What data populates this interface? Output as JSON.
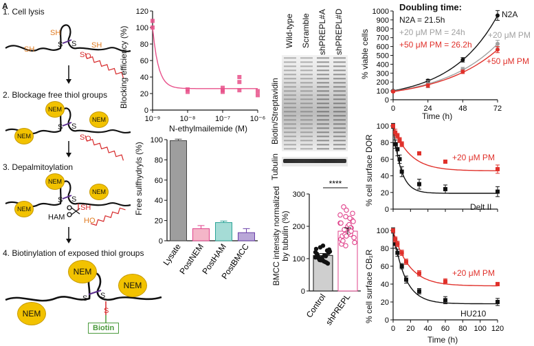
{
  "panel_letters": [
    "A"
  ],
  "schematic": {
    "steps": [
      "1. Cell lysis",
      "2. Blockage free thiol groups",
      "3. Depalmitoylation",
      "4. Biotinylation of exposed thiol groups"
    ],
    "labels": {
      "sh": "SH",
      "s": "S",
      "o": "O",
      "ho": "HO",
      "nem": "NEM",
      "ham": "HAM",
      "biotin": "Biotin"
    },
    "colors": {
      "nem_fill": "#f2c200",
      "nem_stroke": "#c79a00",
      "sh_orange": "#e07a1f",
      "palm_red": "#d62728",
      "biotin_green": "#4a9a3c",
      "disulfide_purple": "#5b2c8e"
    }
  },
  "western": {
    "lane_labels": [
      "Wild-type",
      "Scramble",
      "shPREPL#A",
      "shPREPL#D"
    ],
    "row_labels": [
      "Biotin/Streptavidin",
      "Tubulin"
    ]
  },
  "chart_data": [
    {
      "id": "blocking",
      "type": "scatter",
      "xlabel": "N-ethylmailemide (M)",
      "ylabel": "Blocking efficiency (%)",
      "xscale": "log",
      "xlim": [
        1e-09,
        1e-06
      ],
      "ylim": [
        0,
        120
      ],
      "xticks": [
        "10⁻⁹",
        "10⁻⁸",
        "10⁻⁷",
        "10⁻⁶"
      ],
      "yticks": [
        0,
        20,
        40,
        60,
        80,
        100,
        120
      ],
      "color": "#e8508a",
      "points": [
        [
          1e-09,
          108
        ],
        [
          1e-09,
          100
        ],
        [
          1e-08,
          25
        ],
        [
          1e-08,
          22
        ],
        [
          1e-07,
          27
        ],
        [
          1e-07,
          24
        ],
        [
          1e-07,
          22
        ],
        [
          3e-07,
          40
        ],
        [
          3e-07,
          34
        ],
        [
          3e-07,
          24
        ],
        [
          1e-06,
          23
        ],
        [
          1e-06,
          18
        ]
      ],
      "fit": {
        "plateau": 26,
        "top": 100,
        "x0": 1e-09,
        "rate_per_decade": 6
      }
    },
    {
      "id": "sulfhydryls",
      "type": "bar",
      "ylabel": "Free sulfhydryls (%)",
      "ylim": [
        0,
        100
      ],
      "yticks": [
        0,
        20,
        40,
        60,
        80,
        100
      ],
      "categories": [
        "Lysate",
        "PostNEM",
        "PostHAM",
        "PostBMCC"
      ],
      "values": [
        99,
        12,
        18,
        8
      ],
      "errors": [
        1.5,
        3,
        1.5,
        4
      ],
      "colors": [
        "#9e9e9e",
        "#f4b6c8",
        "#a5dcd6",
        "#b9a7d8"
      ],
      "edge_colors": [
        "#444444",
        "#e0408a",
        "#2aa396",
        "#6a3fa8"
      ]
    },
    {
      "id": "bmcc",
      "type": "bar",
      "ylabel": "BMCC intensity normalized by tubulin (%)",
      "ylim": [
        0,
        300
      ],
      "yticks": [
        0,
        100,
        200,
        300
      ],
      "categories": [
        "Control",
        "shPREPL"
      ],
      "values": [
        110,
        185
      ],
      "errors": [
        6,
        10
      ],
      "significance": "****",
      "colors": [
        "#cfcfcf",
        "#ffffff"
      ],
      "edge_colors": [
        "#111111",
        "#e0408a"
      ],
      "scatter": [
        [
          120,
          108,
          95,
          130,
          88,
          102,
          115,
          125,
          98,
          112,
          85,
          140,
          105,
          118,
          92,
          100,
          128,
          110,
          96,
          122,
          90,
          135,
          104,
          108
        ],
        [
          210,
          175,
          230,
          160,
          195,
          250,
          145,
          220,
          185,
          170,
          240,
          200,
          155,
          215,
          180,
          260,
          165,
          205,
          190,
          150,
          225,
          175,
          235,
          195,
          140,
          210,
          185,
          170
        ]
      ]
    },
    {
      "id": "viability",
      "type": "line",
      "title": "Doubling time:",
      "xlabel": "Time (h)",
      "ylabel": "% viable cells",
      "xlim": [
        0,
        72
      ],
      "ylim": [
        0,
        1000
      ],
      "xticks": [
        0,
        24,
        48,
        72
      ],
      "yticks": [
        0,
        100,
        200,
        300,
        400,
        500,
        600,
        700,
        800,
        900,
        1000
      ],
      "series": [
        {
          "name": "N2A",
          "legend": "N2A = 21.5h",
          "color": "#111111",
          "x": [
            0,
            24,
            48,
            72
          ],
          "y": [
            100,
            215,
            450,
            950
          ],
          "err": [
            10,
            15,
            25,
            55
          ]
        },
        {
          "name": "+20 μM PM",
          "legend": "+20 μM PM = 24h",
          "color": "#a0a0a0",
          "x": [
            0,
            24,
            48,
            72
          ],
          "y": [
            95,
            175,
            345,
            630
          ],
          "err": [
            10,
            40,
            20,
            40
          ]
        },
        {
          "name": "+50 μM PM",
          "legend": "+50 μM PM = 26.2h",
          "color": "#e0302a",
          "x": [
            0,
            24,
            48,
            72
          ],
          "y": [
            92,
            160,
            315,
            565
          ],
          "err": [
            10,
            20,
            20,
            35
          ]
        }
      ]
    },
    {
      "id": "dor",
      "type": "line",
      "ylabel": "% cell surface DOR",
      "xlim": [
        0,
        120
      ],
      "ylim": [
        0,
        100
      ],
      "yticks": [
        0,
        20,
        40,
        60,
        80,
        100
      ],
      "series": [
        {
          "name": "Delt II",
          "color": "#111111",
          "x": [
            0,
            2.5,
            5,
            7.5,
            10,
            30,
            60,
            120
          ],
          "y": [
            100,
            78,
            72,
            60,
            45,
            30,
            24,
            21
          ],
          "err": [
            3,
            5,
            8,
            5,
            6,
            6,
            5,
            6
          ]
        },
        {
          "name": "+20 μM PM",
          "color": "#e0302a",
          "x": [
            0,
            2.5,
            5,
            7.5,
            10,
            30,
            60,
            120
          ],
          "y": [
            100,
            92,
            88,
            83,
            78,
            67,
            57,
            48
          ],
          "err": [
            2,
            4,
            3,
            3,
            3,
            2,
            2,
            5
          ]
        }
      ]
    },
    {
      "id": "cb1r",
      "type": "line",
      "xlabel": "Time (h)",
      "ylabel": "% cell surface CB₁R",
      "xlim": [
        0,
        120
      ],
      "ylim": [
        0,
        100
      ],
      "xticks": [
        0,
        20,
        40,
        60,
        80,
        100,
        120
      ],
      "yticks": [
        0,
        20,
        40,
        60,
        80,
        100
      ],
      "series": [
        {
          "name": "HU210",
          "color": "#111111",
          "x": [
            0,
            2.5,
            5,
            10,
            15,
            30,
            60,
            120
          ],
          "y": [
            100,
            85,
            75,
            60,
            45,
            32,
            22,
            20
          ],
          "err": [
            3,
            5,
            4,
            3,
            4,
            3,
            4,
            4
          ]
        },
        {
          "name": "+20 μM PM",
          "color": "#e0302a",
          "x": [
            0,
            2.5,
            5,
            10,
            15,
            30,
            60,
            120
          ],
          "y": [
            100,
            90,
            85,
            75,
            65,
            52,
            43,
            40
          ],
          "err": [
            2,
            3,
            3,
            3,
            3,
            3,
            3,
            2
          ]
        }
      ]
    }
  ]
}
